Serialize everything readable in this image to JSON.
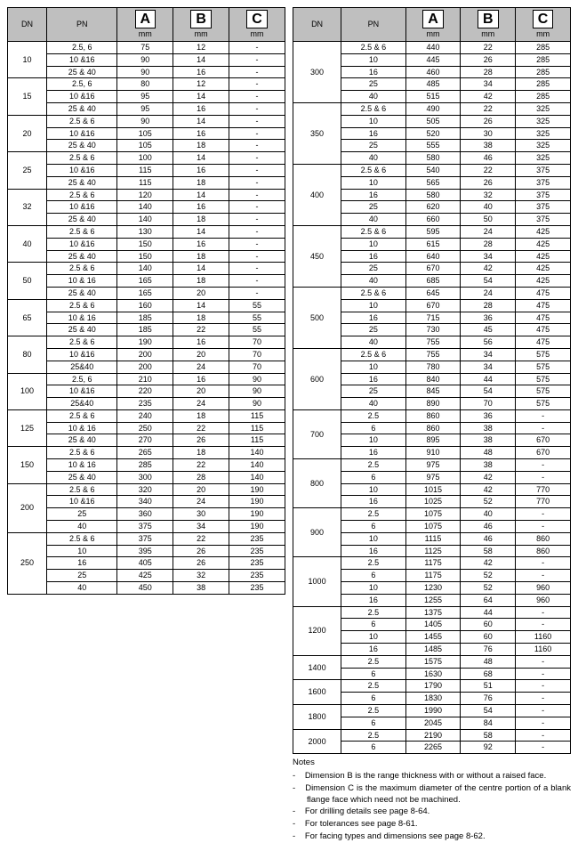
{
  "headers": {
    "dn": "DN",
    "pn": "PN",
    "mm": "mm",
    "letterA": "A",
    "letterB": "B",
    "letterC": "C"
  },
  "table1": [
    {
      "dn": "10",
      "rows": [
        [
          "2.5, 6",
          "75",
          "12",
          "-"
        ],
        [
          "10 &16",
          "90",
          "14",
          "-"
        ],
        [
          "25 & 40",
          "90",
          "16",
          "-"
        ]
      ]
    },
    {
      "dn": "15",
      "rows": [
        [
          "2.5, 6",
          "80",
          "12",
          "-"
        ],
        [
          "10 &16",
          "95",
          "14",
          "-"
        ],
        [
          "25 & 40",
          "95",
          "16",
          "-"
        ]
      ]
    },
    {
      "dn": "20",
      "rows": [
        [
          "2.5 & 6",
          "90",
          "14",
          "-"
        ],
        [
          "10 &16",
          "105",
          "16",
          "-"
        ],
        [
          "25 & 40",
          "105",
          "18",
          "-"
        ]
      ]
    },
    {
      "dn": "25",
      "rows": [
        [
          "2.5 & 6",
          "100",
          "14",
          "-"
        ],
        [
          "10 &16",
          "115",
          "16",
          "-"
        ],
        [
          "25 & 40",
          "115",
          "18",
          "-"
        ]
      ]
    },
    {
      "dn": "32",
      "rows": [
        [
          "2.5 & 6",
          "120",
          "14",
          "-"
        ],
        [
          "10 &16",
          "140",
          "16",
          "-"
        ],
        [
          "25 & 40",
          "140",
          "18",
          "-"
        ]
      ]
    },
    {
      "dn": "40",
      "rows": [
        [
          "2.5 & 6",
          "130",
          "14",
          "-"
        ],
        [
          "10 &16",
          "150",
          "16",
          "-"
        ],
        [
          "25 & 40",
          "150",
          "18",
          "-"
        ]
      ]
    },
    {
      "dn": "50",
      "rows": [
        [
          "2.5 & 6",
          "140",
          "14",
          "-"
        ],
        [
          "10 & 16",
          "165",
          "18",
          "-"
        ],
        [
          "25 & 40",
          "165",
          "20",
          "-"
        ]
      ]
    },
    {
      "dn": "65",
      "rows": [
        [
          "2.5 & 6",
          "160",
          "14",
          "55"
        ],
        [
          "10 & 16",
          "185",
          "18",
          "55"
        ],
        [
          "25 & 40",
          "185",
          "22",
          "55"
        ]
      ]
    },
    {
      "dn": "80",
      "rows": [
        [
          "2.5 & 6",
          "190",
          "16",
          "70"
        ],
        [
          "10 &16",
          "200",
          "20",
          "70"
        ],
        [
          "25&40",
          "200",
          "24",
          "70"
        ]
      ]
    },
    {
      "dn": "100",
      "rows": [
        [
          "2.5, 6",
          "210",
          "16",
          "90"
        ],
        [
          "10 &16",
          "220",
          "20",
          "90"
        ],
        [
          "25&40",
          "235",
          "24",
          "90"
        ]
      ]
    },
    {
      "dn": "125",
      "rows": [
        [
          "2.5 & 6",
          "240",
          "18",
          "115"
        ],
        [
          "10 & 16",
          "250",
          "22",
          "115"
        ],
        [
          "25 & 40",
          "270",
          "26",
          "115"
        ]
      ]
    },
    {
      "dn": "150",
      "rows": [
        [
          "2.5 & 6",
          "265",
          "18",
          "140"
        ],
        [
          "10 & 16",
          "285",
          "22",
          "140"
        ],
        [
          "25 & 40",
          "300",
          "28",
          "140"
        ]
      ]
    },
    {
      "dn": "200",
      "rows": [
        [
          "2.5 & 6",
          "320",
          "20",
          "190"
        ],
        [
          "10 &16",
          "340",
          "24",
          "190"
        ],
        [
          "25",
          "360",
          "30",
          "190"
        ],
        [
          "40",
          "375",
          "34",
          "190"
        ]
      ]
    },
    {
      "dn": "250",
      "rows": [
        [
          "2.5 & 6",
          "375",
          "22",
          "235"
        ],
        [
          "10",
          "395",
          "26",
          "235"
        ],
        [
          "16",
          "405",
          "26",
          "235"
        ],
        [
          "25",
          "425",
          "32",
          "235"
        ],
        [
          "40",
          "450",
          "38",
          "235"
        ]
      ]
    }
  ],
  "table2": [
    {
      "dn": "300",
      "rows": [
        [
          "2.5 & 6",
          "440",
          "22",
          "285"
        ],
        [
          "10",
          "445",
          "26",
          "285"
        ],
        [
          "16",
          "460",
          "28",
          "285"
        ],
        [
          "25",
          "485",
          "34",
          "285"
        ],
        [
          "40",
          "515",
          "42",
          "285"
        ]
      ]
    },
    {
      "dn": "350",
      "rows": [
        [
          "2.5 & 6",
          "490",
          "22",
          "325"
        ],
        [
          "10",
          "505",
          "26",
          "325"
        ],
        [
          "16",
          "520",
          "30",
          "325"
        ],
        [
          "25",
          "555",
          "38",
          "325"
        ],
        [
          "40",
          "580",
          "46",
          "325"
        ]
      ]
    },
    {
      "dn": "400",
      "rows": [
        [
          "2.5 & 6",
          "540",
          "22",
          "375"
        ],
        [
          "10",
          "565",
          "26",
          "375"
        ],
        [
          "16",
          "580",
          "32",
          "375"
        ],
        [
          "25",
          "620",
          "40",
          "375"
        ],
        [
          "40",
          "660",
          "50",
          "375"
        ]
      ]
    },
    {
      "dn": "450",
      "rows": [
        [
          "2.5 & 6",
          "595",
          "24",
          "425"
        ],
        [
          "10",
          "615",
          "28",
          "425"
        ],
        [
          "16",
          "640",
          "34",
          "425"
        ],
        [
          "25",
          "670",
          "42",
          "425"
        ],
        [
          "40",
          "685",
          "54",
          "425"
        ]
      ]
    },
    {
      "dn": "500",
      "rows": [
        [
          "2.5 & 6",
          "645",
          "24",
          "475"
        ],
        [
          "10",
          "670",
          "28",
          "475"
        ],
        [
          "16",
          "715",
          "36",
          "475"
        ],
        [
          "25",
          "730",
          "45",
          "475"
        ],
        [
          "40",
          "755",
          "56",
          "475"
        ]
      ]
    },
    {
      "dn": "600",
      "rows": [
        [
          "2.5 & 6",
          "755",
          "34",
          "575"
        ],
        [
          "10",
          "780",
          "34",
          "575"
        ],
        [
          "16",
          "840",
          "44",
          "575"
        ],
        [
          "25",
          "845",
          "54",
          "575"
        ],
        [
          "40",
          "890",
          "70",
          "575"
        ]
      ]
    },
    {
      "dn": "700",
      "rows": [
        [
          "2.5",
          "860",
          "36",
          "-"
        ],
        [
          "6",
          "860",
          "38",
          "-"
        ],
        [
          "10",
          "895",
          "38",
          "670"
        ],
        [
          "16",
          "910",
          "48",
          "670"
        ]
      ]
    },
    {
      "dn": "800",
      "rows": [
        [
          "2.5",
          "975",
          "38",
          "-"
        ],
        [
          "6",
          "975",
          "42",
          "-"
        ],
        [
          "10",
          "1015",
          "42",
          "770"
        ],
        [
          "16",
          "1025",
          "52",
          "770"
        ]
      ]
    },
    {
      "dn": "900",
      "rows": [
        [
          "2.5",
          "1075",
          "40",
          "-"
        ],
        [
          "6",
          "1075",
          "46",
          "-"
        ],
        [
          "10",
          "1115",
          "46",
          "860"
        ],
        [
          "16",
          "1125",
          "58",
          "860"
        ]
      ]
    },
    {
      "dn": "1000",
      "rows": [
        [
          "2.5",
          "1175",
          "42",
          "-"
        ],
        [
          "6",
          "1175",
          "52",
          "-"
        ],
        [
          "10",
          "1230",
          "52",
          "960"
        ],
        [
          "16",
          "1255",
          "64",
          "960"
        ]
      ]
    },
    {
      "dn": "1200",
      "rows": [
        [
          "2.5",
          "1375",
          "44",
          "-"
        ],
        [
          "6",
          "1405",
          "60",
          "-"
        ],
        [
          "10",
          "1455",
          "60",
          "1160"
        ],
        [
          "16",
          "1485",
          "76",
          "1160"
        ]
      ]
    },
    {
      "dn": "1400",
      "rows": [
        [
          "2.5",
          "1575",
          "48",
          "-"
        ],
        [
          "6",
          "1630",
          "68",
          "-"
        ]
      ]
    },
    {
      "dn": "1600",
      "rows": [
        [
          "2.5",
          "1790",
          "51",
          "-"
        ],
        [
          "6",
          "1830",
          "76",
          "-"
        ]
      ]
    },
    {
      "dn": "1800",
      "rows": [
        [
          "2.5",
          "1990",
          "54",
          "-"
        ],
        [
          "6",
          "2045",
          "84",
          "-"
        ]
      ]
    },
    {
      "dn": "2000",
      "rows": [
        [
          "2.5",
          "2190",
          "58",
          "-"
        ],
        [
          "6",
          "2265",
          "92",
          "-"
        ]
      ]
    }
  ],
  "notes": {
    "title": "Notes",
    "items": [
      "Dimension B is the range thickness with or without a raised face.",
      "Dimension C is the maximum diameter of the centre portion of a blank flange face which need not be machined.",
      "For drilling details see page 8-64.",
      "For tolerances see page 8-61.",
      "For facing types and dimensions see page 8-62."
    ]
  }
}
